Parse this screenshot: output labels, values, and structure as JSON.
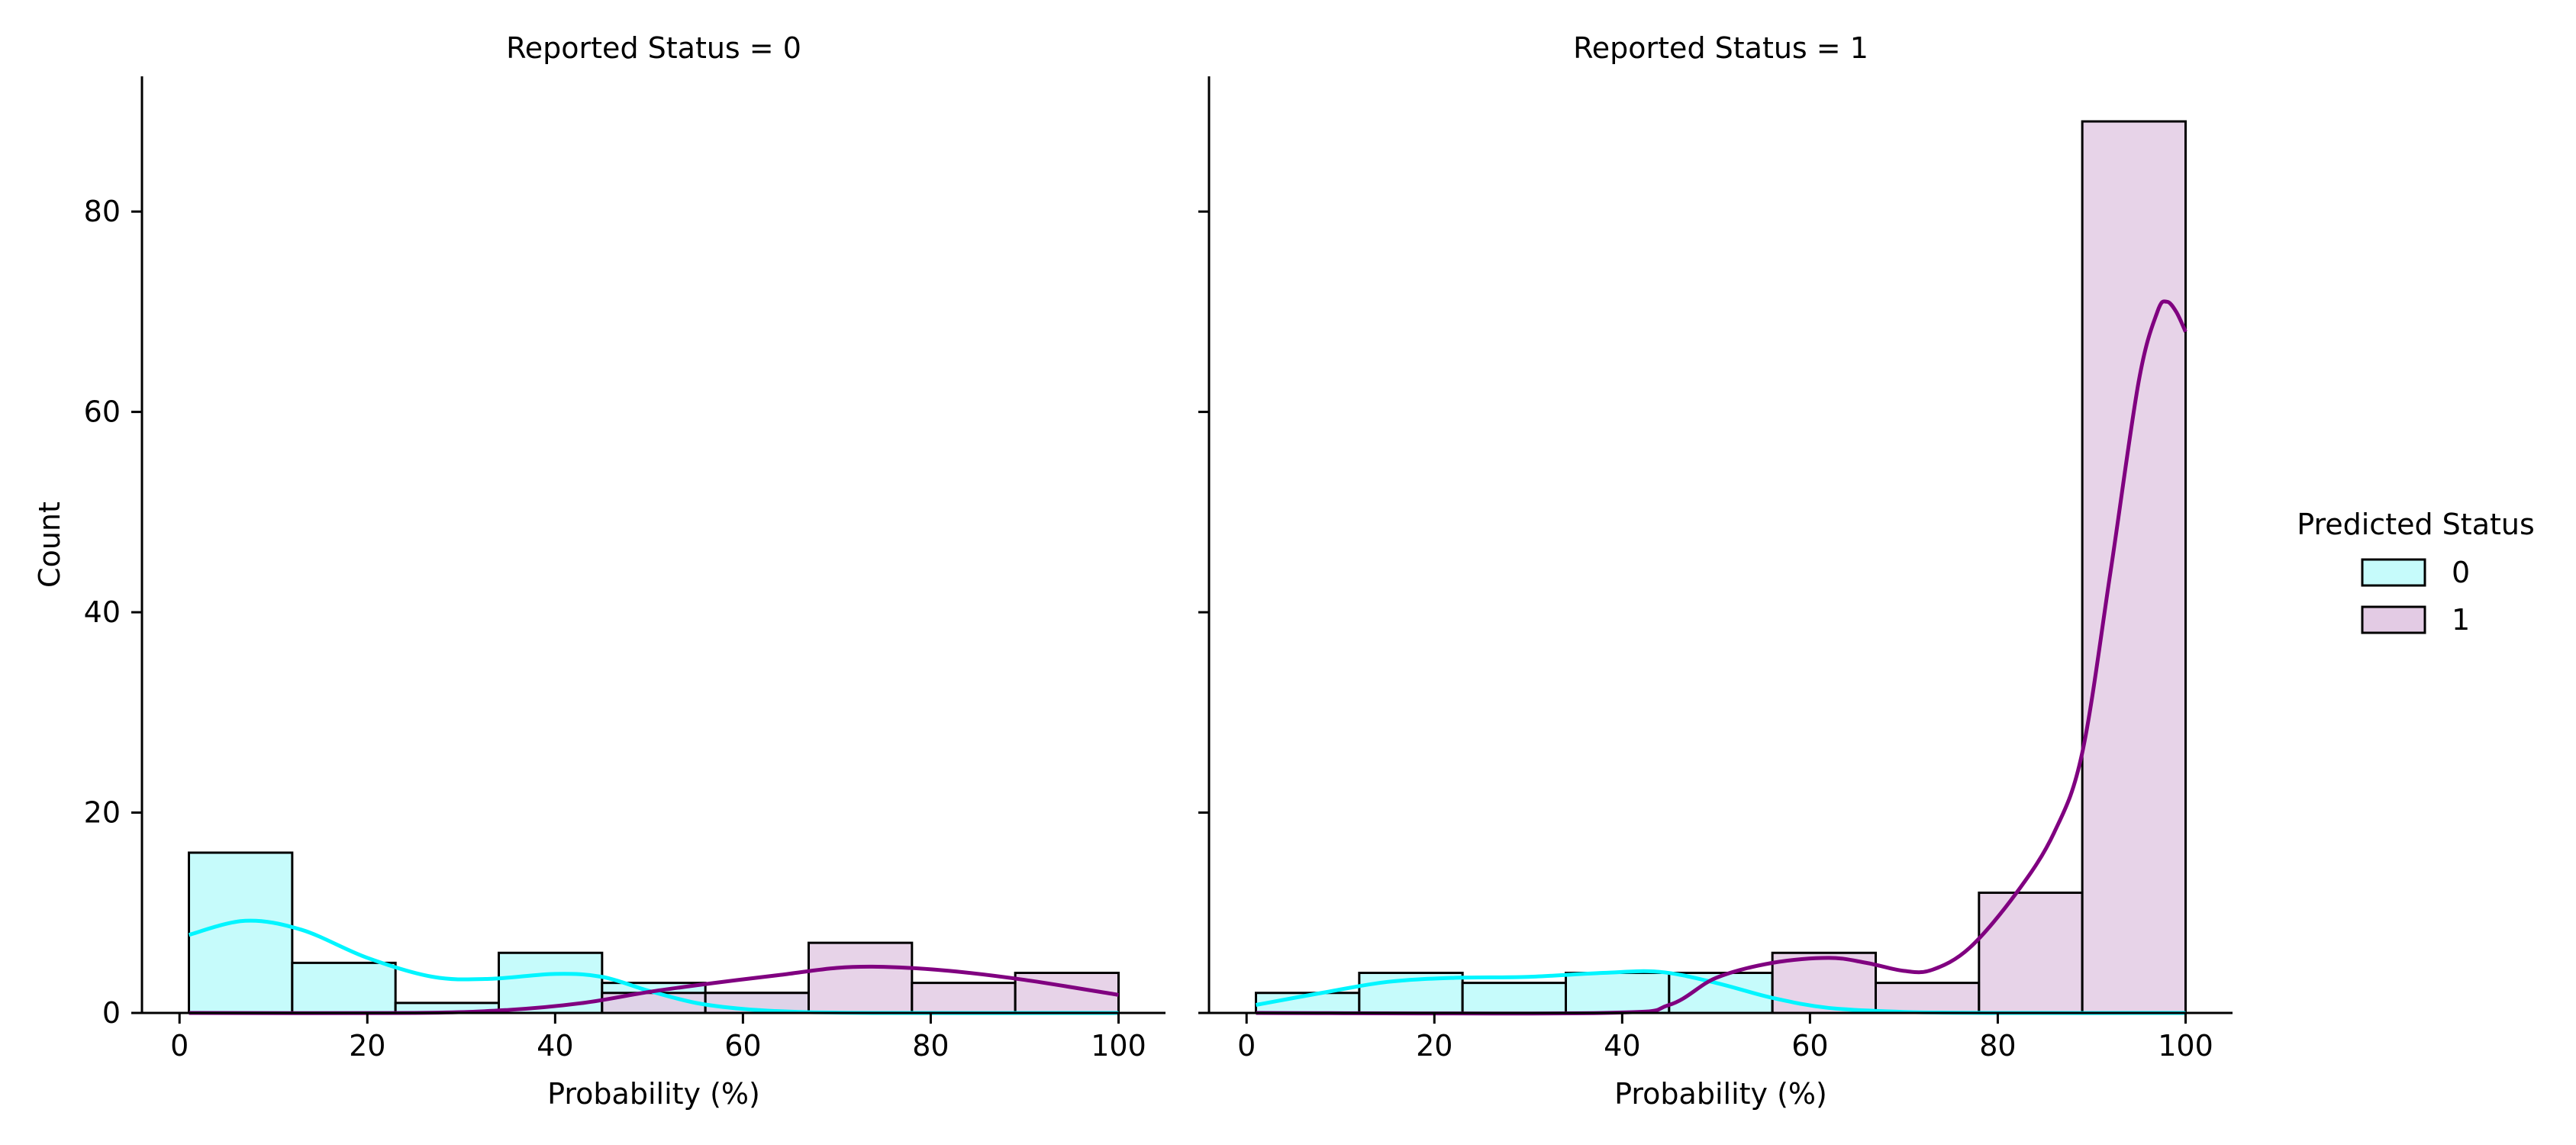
{
  "legend": {
    "title": "Predicted Status",
    "entries": [
      {
        "label": "0",
        "fill": "#c6fbfb",
        "line": "#00f5ff"
      },
      {
        "label": "1",
        "fill": "#e3cbe4",
        "line": "#800080"
      }
    ]
  },
  "chart_data": [
    {
      "type": "bar",
      "title": "Reported Status = 0",
      "xlabel": "Probability (%)",
      "ylabel": "Count",
      "xlim": [
        -4,
        105
      ],
      "ylim": [
        0,
        93.5
      ],
      "xticks": [
        0,
        20,
        40,
        60,
        80,
        100
      ],
      "yticks": [
        0,
        20,
        40,
        60,
        80
      ],
      "bin_edges": [
        1,
        12,
        23,
        34,
        45,
        56,
        67,
        78,
        89,
        100
      ],
      "series": [
        {
          "name": "0",
          "values": [
            16,
            5,
            1,
            6,
            3,
            2,
            0,
            0,
            0
          ],
          "kde": [
            [
              1,
              7.8
            ],
            [
              7,
              9.2
            ],
            [
              13,
              8.3
            ],
            [
              20,
              5.5
            ],
            [
              27,
              3.6
            ],
            [
              33,
              3.4
            ],
            [
              40,
              3.9
            ],
            [
              45,
              3.6
            ],
            [
              50,
              2.2
            ],
            [
              55,
              1.0
            ],
            [
              60,
              0.4
            ],
            [
              66,
              0.1
            ],
            [
              75,
              0
            ],
            [
              100,
              0
            ]
          ]
        },
        {
          "name": "1",
          "values": [
            0,
            0,
            0,
            0,
            2,
            2,
            7,
            3,
            4
          ],
          "kde": [
            [
              1,
              0
            ],
            [
              25,
              0
            ],
            [
              35,
              0.3
            ],
            [
              43,
              1.0
            ],
            [
              50,
              2.1
            ],
            [
              57,
              3.0
            ],
            [
              64,
              3.8
            ],
            [
              70,
              4.5
            ],
            [
              75,
              4.6
            ],
            [
              82,
              4.2
            ],
            [
              90,
              3.3
            ],
            [
              100,
              1.8
            ]
          ]
        }
      ]
    },
    {
      "type": "bar",
      "title": "Reported Status = 1",
      "xlabel": "Probability (%)",
      "ylabel": "",
      "xlim": [
        -4,
        105
      ],
      "ylim": [
        0,
        93.5
      ],
      "xticks": [
        0,
        20,
        40,
        60,
        80,
        100
      ],
      "yticks": [
        0,
        20,
        40,
        60,
        80
      ],
      "bin_edges": [
        1,
        12,
        23,
        34,
        45,
        56,
        67,
        78,
        89,
        100
      ],
      "series": [
        {
          "name": "0",
          "values": [
            2,
            4,
            3,
            4,
            4,
            0,
            0,
            0,
            0
          ],
          "kde": [
            [
              1,
              0.8
            ],
            [
              8,
              2.0
            ],
            [
              15,
              3.1
            ],
            [
              22,
              3.5
            ],
            [
              30,
              3.6
            ],
            [
              38,
              4.0
            ],
            [
              44,
              4.1
            ],
            [
              50,
              3.0
            ],
            [
              56,
              1.5
            ],
            [
              62,
              0.5
            ],
            [
              70,
              0.1
            ],
            [
              80,
              0
            ],
            [
              100,
              0
            ]
          ]
        },
        {
          "name": "1",
          "values": [
            0,
            0,
            0,
            0,
            0,
            6,
            3,
            12,
            89
          ],
          "kde": [
            [
              1,
              0
            ],
            [
              38,
              0
            ],
            [
              45,
              0.8
            ],
            [
              50,
              3.5
            ],
            [
              56,
              5.0
            ],
            [
              62,
              5.5
            ],
            [
              66,
              5.0
            ],
            [
              70,
              4.2
            ],
            [
              73,
              4.3
            ],
            [
              77,
              6.5
            ],
            [
              82,
              12
            ],
            [
              86,
              18
            ],
            [
              89,
              26
            ],
            [
              92,
              44
            ],
            [
              95,
              63
            ],
            [
              97,
              70
            ],
            [
              98,
              71
            ],
            [
              99,
              70
            ],
            [
              100,
              68
            ]
          ]
        }
      ]
    }
  ]
}
